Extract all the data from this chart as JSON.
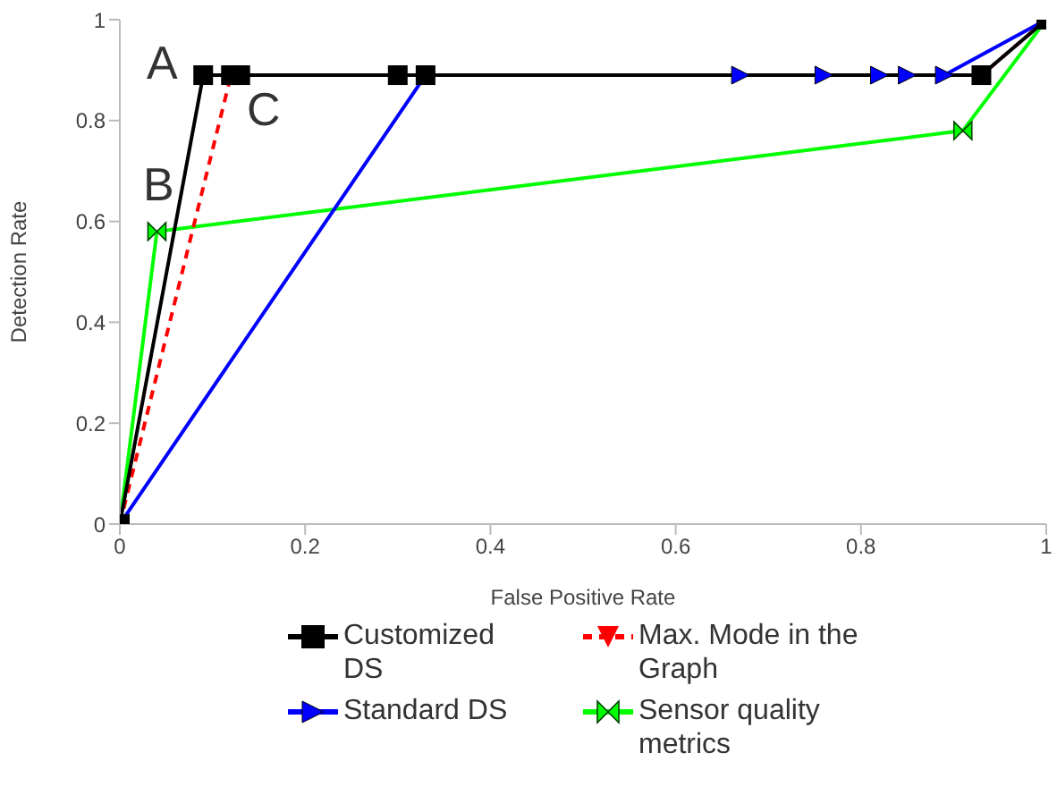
{
  "chart_data": {
    "type": "line",
    "xlabel": "False Positive Rate",
    "ylabel": "Detection Rate",
    "xlim": [
      0,
      1
    ],
    "ylim": [
      0,
      1
    ],
    "xticks": [
      0,
      0.2,
      0.4,
      0.6,
      0.8,
      1
    ],
    "yticks": [
      0,
      0.2,
      0.4,
      0.6,
      0.8,
      1
    ],
    "legend": "bottom",
    "line_style": "solid",
    "series": [
      {
        "name": "Customized DS",
        "color": "#000000",
        "marker": "square",
        "x": [
          0,
          0.09,
          0.12,
          0.13,
          0.3,
          0.33,
          0.93,
          1
        ],
        "values": [
          0,
          0.89,
          0.89,
          0.89,
          0.89,
          0.89,
          0.89,
          1
        ]
      },
      {
        "name": "Max. Mode in the Graph",
        "color": "#ff0000",
        "marker": "triangle",
        "line_style": "dashed",
        "x": [
          0,
          0.12,
          0.93,
          1
        ],
        "values": [
          0,
          0.89,
          0.89,
          1
        ]
      },
      {
        "name": "Standard DS",
        "color": "#0000ff",
        "marker": "triangle",
        "x": [
          0,
          0.33,
          0.67,
          0.76,
          0.82,
          0.85,
          0.89,
          1
        ],
        "values": [
          0,
          0.89,
          0.89,
          0.89,
          0.89,
          0.89,
          0.89,
          1
        ]
      },
      {
        "name": "Sensor quality metrics",
        "color": "#00ff00",
        "marker": "diamond",
        "x": [
          0,
          0.04,
          0.91,
          1
        ],
        "values": [
          0,
          0.58,
          0.78,
          1
        ]
      }
    ],
    "annotations": [
      "A",
      "B",
      "C"
    ]
  }
}
